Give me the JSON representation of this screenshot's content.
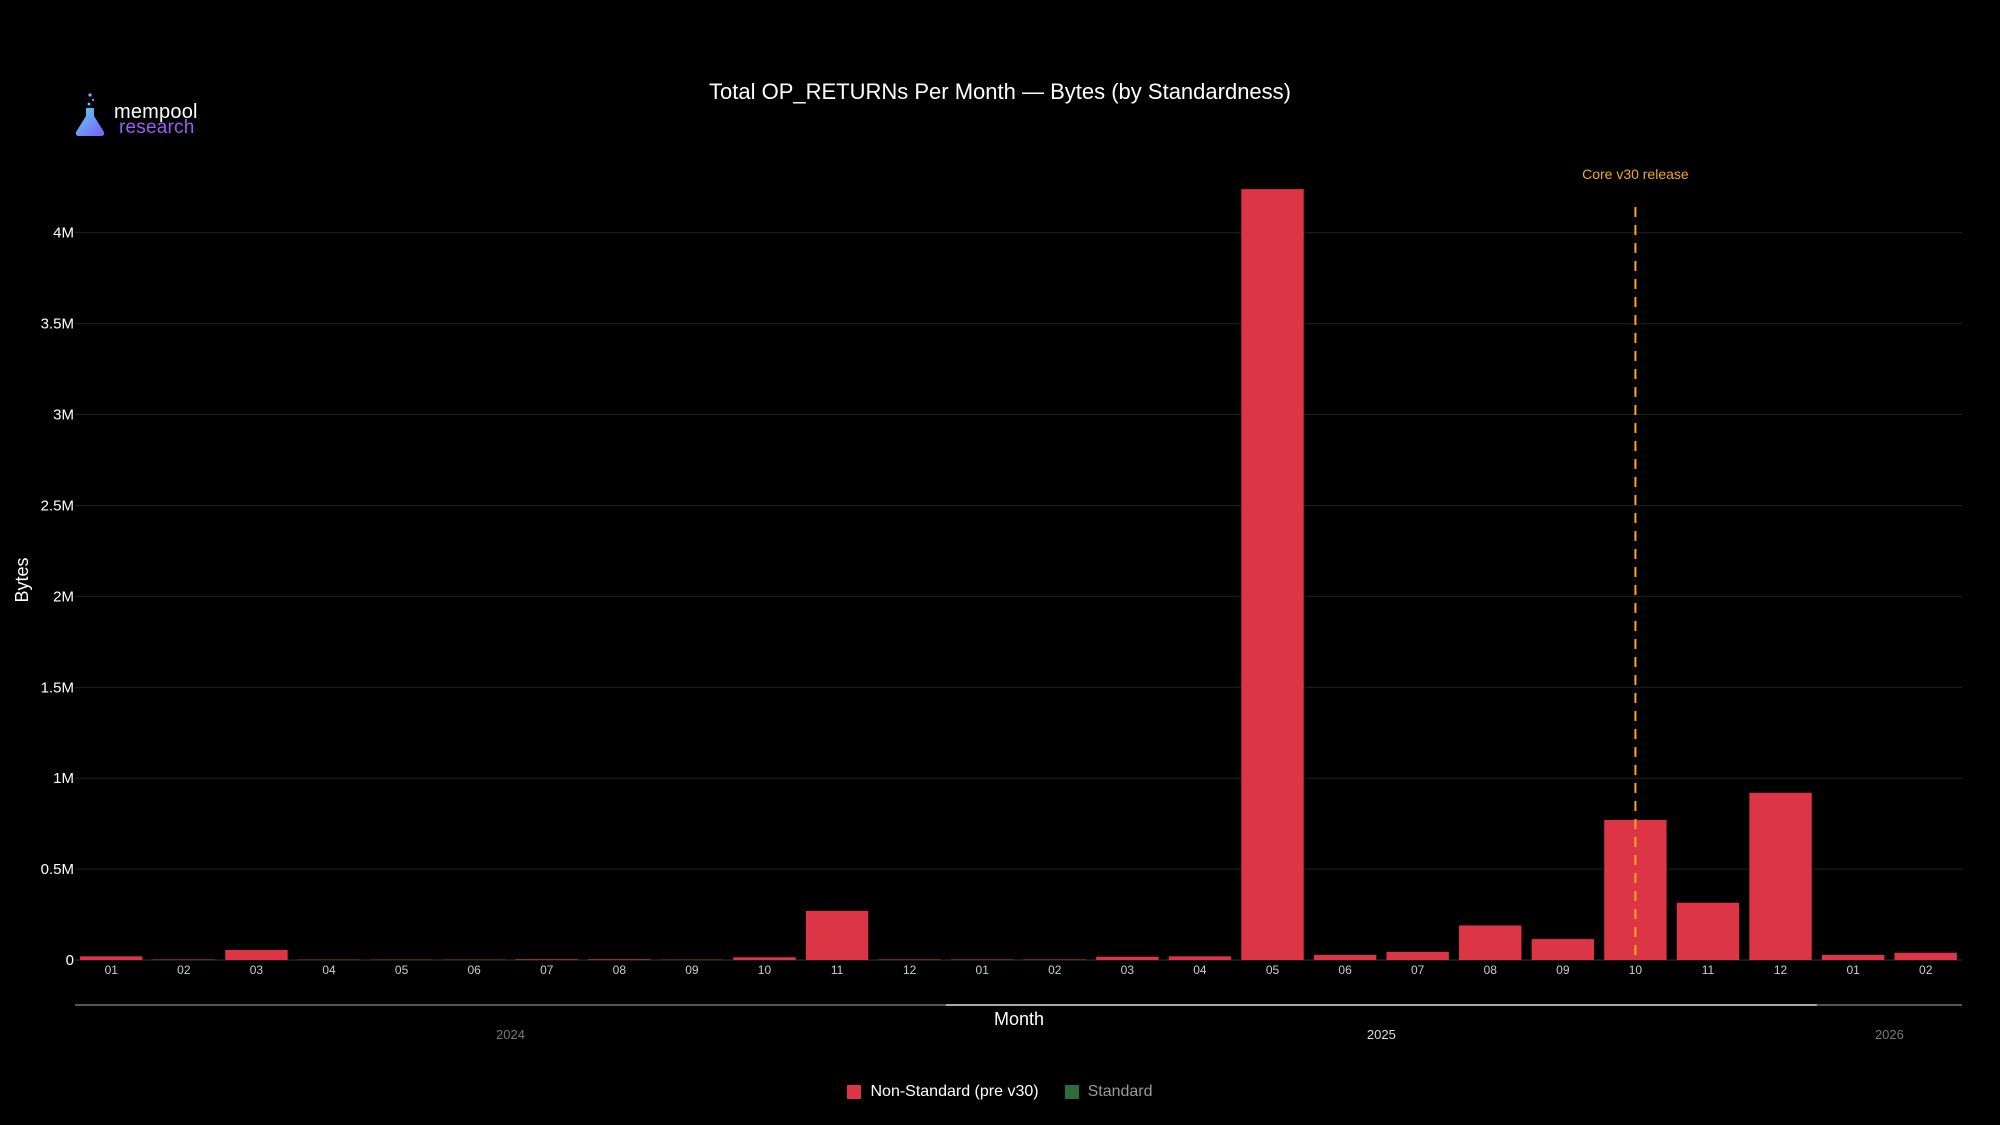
{
  "brand": {
    "line1": "mempool",
    "line2": "research"
  },
  "colors": {
    "background": "#000000",
    "non_standard": "#dc3545",
    "standard": "#2e6b3a",
    "annotation": "#f5a623",
    "grid": "#222222",
    "text": "#ffffff",
    "muted": "#9a9a9a"
  },
  "chart_data": {
    "type": "bar",
    "title": "Total OP_RETURNs Per Month — Bytes (by Standardness)",
    "xlabel": "Month",
    "ylabel": "Bytes",
    "ylim": [
      0,
      4400000
    ],
    "yticks": [
      0,
      500000,
      1000000,
      1500000,
      2000000,
      2500000,
      3000000,
      3500000,
      4000000
    ],
    "ytick_labels": [
      "0",
      "0.5M",
      "1M",
      "1.5M",
      "2M",
      "2.5M",
      "3M",
      "3.5M",
      "4M"
    ],
    "grid": true,
    "legend_position": "bottom",
    "categories": [
      "01",
      "02",
      "03",
      "04",
      "05",
      "06",
      "07",
      "08",
      "09",
      "10",
      "11",
      "12",
      "01",
      "02",
      "03",
      "04",
      "05",
      "06",
      "07",
      "08",
      "09",
      "10",
      "11",
      "12",
      "01",
      "02"
    ],
    "year_groups": [
      {
        "label": "2024",
        "start": 0,
        "end": 11
      },
      {
        "label": "2025",
        "start": 12,
        "end": 23
      },
      {
        "label": "2026",
        "start": 24,
        "end": 25
      }
    ],
    "series": [
      {
        "name": "Non-Standard (pre v30)",
        "color": "#dc3545",
        "values": [
          20000,
          3000,
          55000,
          2000,
          2000,
          2000,
          4000,
          4000,
          2000,
          15000,
          270000,
          3000,
          3000,
          3000,
          18000,
          20000,
          4240000,
          28000,
          45000,
          190000,
          115000,
          770000,
          315000,
          920000,
          28000,
          40000
        ]
      },
      {
        "name": "Standard",
        "color": "#2e6b3a",
        "values": [
          0,
          0,
          0,
          0,
          0,
          0,
          0,
          0,
          0,
          0,
          0,
          0,
          0,
          0,
          0,
          0,
          0,
          0,
          0,
          0,
          0,
          0,
          0,
          0,
          0,
          0
        ]
      }
    ],
    "annotations": [
      {
        "label": "Core v30 release",
        "category_index": 21,
        "style": "dashed-vertical-line"
      }
    ],
    "legend_state": {
      "Non-Standard (pre v30)": "visible",
      "Standard": "hidden"
    }
  }
}
